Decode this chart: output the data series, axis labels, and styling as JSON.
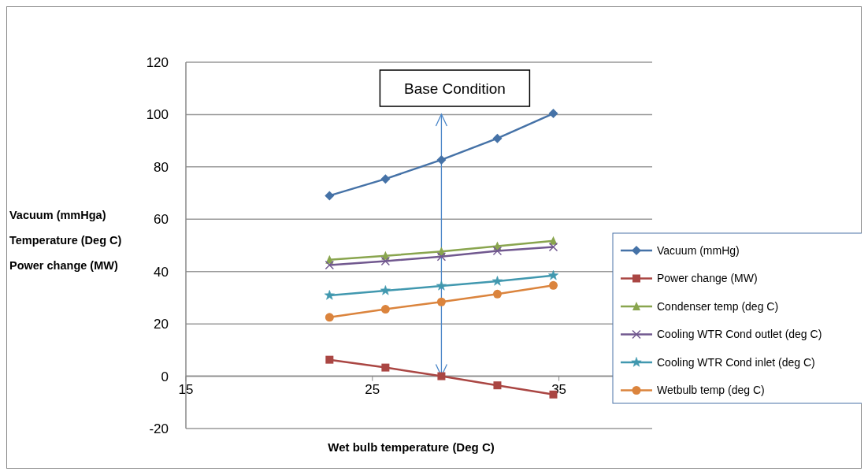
{
  "chart_data": {
    "type": "line",
    "xlabel": "Wet bulb temperature (Deg C)",
    "ylabel": "Vacuum (mmHga)\nTemperature (Deg C)\nPower change (MW)",
    "x": [
      22.7,
      25.7,
      28.7,
      31.7,
      34.7
    ],
    "series": [
      {
        "name": "Vacuum (mmHg)",
        "color": "#4572a7",
        "marker": "diamond",
        "values": [
          69.0,
          75.4,
          82.7,
          90.9,
          100.4
        ]
      },
      {
        "name": "Power change (MW)",
        "color": "#aa4643",
        "marker": "square",
        "values": [
          6.3,
          3.3,
          0,
          -3.5,
          -7.0
        ]
      },
      {
        "name": "Condenser temp (deg C)",
        "color": "#89a54e",
        "marker": "triangle",
        "values": [
          44.5,
          46.0,
          47.7,
          49.7,
          51.7
        ]
      },
      {
        "name": "Cooling WTR Cond outlet (deg C)",
        "color": "#71588f",
        "marker": "cross",
        "values": [
          42.5,
          44.0,
          45.7,
          47.9,
          49.4
        ]
      },
      {
        "name": "Cooling WTR Cond inlet (deg C)",
        "color": "#4198af",
        "marker": "star",
        "values": [
          30.9,
          32.7,
          34.5,
          36.3,
          38.5
        ]
      },
      {
        "name": "Wetbulb temp (deg C)",
        "color": "#db843d",
        "marker": "circle",
        "values": [
          22.5,
          25.6,
          28.4,
          31.4,
          34.7
        ]
      }
    ],
    "xlim": [
      15,
      40
    ],
    "xticks": [
      15,
      25,
      35
    ],
    "ylim": [
      -20,
      120
    ],
    "yticks": [
      -20,
      0,
      20,
      40,
      60,
      80,
      100,
      120
    ],
    "grid": "y",
    "legend": "right",
    "ref_lines": [
      {
        "axis": "x",
        "value": 28.7,
        "label": "Base Condition",
        "color": "#4a86c8"
      }
    ]
  }
}
